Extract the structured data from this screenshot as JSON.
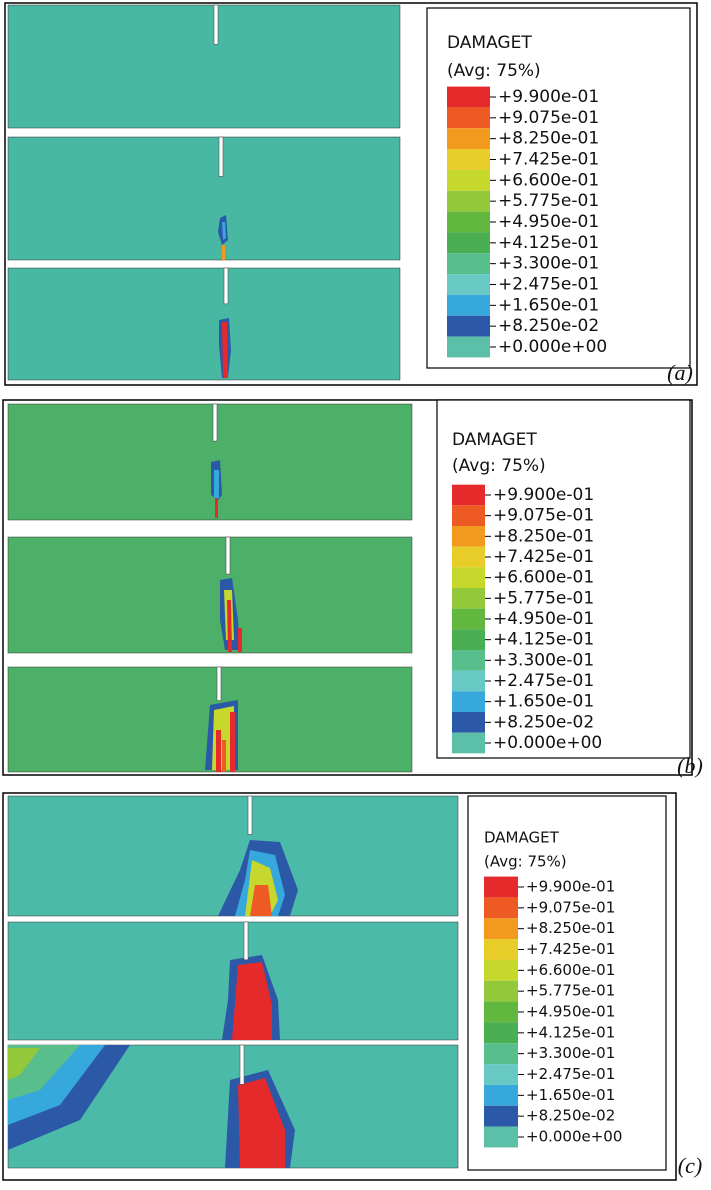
{
  "panels": [
    {
      "label": "(a)",
      "legend": {
        "title": "DAMAGET",
        "subtitle": "(Avg: 75%)",
        "levels": [
          "+9.900e-01",
          "+9.075e-01",
          "+8.250e-01",
          "+7.425e-01",
          "+6.600e-01",
          "+5.775e-01",
          "+4.950e-01",
          "+4.125e-01",
          "+3.300e-01",
          "+2.475e-01",
          "+1.650e-01",
          "+8.250e-02",
          "+0.000e+00"
        ]
      }
    },
    {
      "label": "(b)",
      "legend": {
        "title": "DAMAGET",
        "subtitle": "(Avg: 75%)",
        "levels": [
          "+9.900e-01",
          "+9.075e-01",
          "+8.250e-01",
          "+7.425e-01",
          "+6.600e-01",
          "+5.775e-01",
          "+4.950e-01",
          "+4.125e-01",
          "+3.300e-01",
          "+2.475e-01",
          "+1.650e-01",
          "+8.250e-02",
          "+0.000e+00"
        ]
      }
    },
    {
      "label": "(c)",
      "legend": {
        "title": "DAMAGET",
        "subtitle": "(Avg: 75%)",
        "levels": [
          "+9.900e-01",
          "+9.075e-01",
          "+8.250e-01",
          "+7.425e-01",
          "+6.600e-01",
          "+5.775e-01",
          "+4.950e-01",
          "+4.125e-01",
          "+3.300e-01",
          "+2.475e-01",
          "+1.650e-01",
          "+8.250e-02",
          "+0.000e+00"
        ]
      }
    }
  ]
}
